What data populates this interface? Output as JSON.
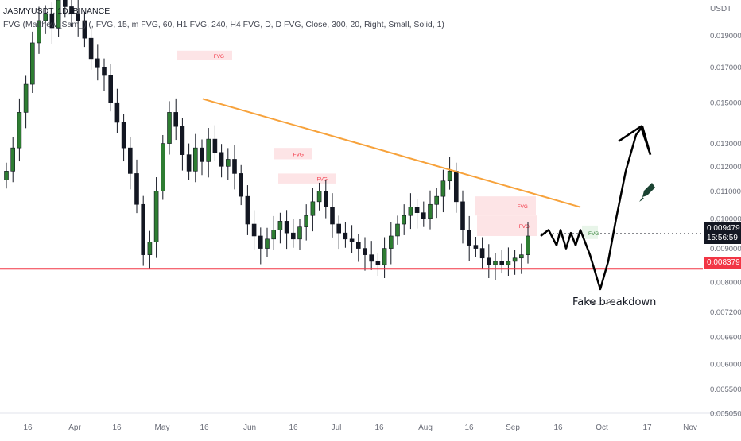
{
  "header": {
    "symbol_line": "JASMYUSDT, 1D, BINANCE",
    "indicator_line": "FVG (Matthew_Sam_) (, FVG, 15, m FVG, 60, H1 FVG, 240, H4 FVG, D, D FVG, Close, 300, 20, Right, Small, Solid, 1)"
  },
  "price_scale": {
    "unit": "USDT",
    "current_price": "0.009479",
    "countdown": "15:56:59",
    "support_price": "0.008379"
  },
  "annotation": {
    "text": "Fake breakdown"
  },
  "colors": {
    "up": "#26a69a",
    "down": "#131722",
    "bull_fill": "#2e7d32",
    "trendline": "#f7a23b",
    "support": "#f23645",
    "fvg_fill": "#fde4e6",
    "fvg_text": "#f23645",
    "rocket": "#1b4332"
  },
  "chart_data": {
    "type": "candlestick",
    "symbol": "JASMYUSDT",
    "timeframe": "1D",
    "exchange": "BINANCE",
    "yscale": "log",
    "ylim": [
      0.00505,
      0.0215
    ],
    "y_ticks": [
      "0.019000",
      "0.017000",
      "0.015000",
      "0.013000",
      "0.012000",
      "0.011000",
      "0.010000",
      "0.009000",
      "0.008000",
      "0.007200",
      "0.006600",
      "0.006000",
      "0.005500",
      "0.005050"
    ],
    "x_ticks": [
      "16",
      "Apr",
      "16",
      "May",
      "16",
      "Jun",
      "16",
      "Jul",
      "16",
      "Aug",
      "16",
      "Sep",
      "16",
      "Oct",
      "17",
      "Nov"
    ],
    "candles_close_path": [
      0.0118,
      0.0128,
      0.0145,
      0.016,
      0.0185,
      0.02,
      0.0205,
      0.0195,
      0.0215,
      0.021,
      0.0205,
      0.02,
      0.0188,
      0.0175,
      0.017,
      0.0165,
      0.015,
      0.014,
      0.0128,
      0.0117,
      0.0105,
      0.0088,
      0.0092,
      0.011,
      0.013,
      0.0145,
      0.0138,
      0.0125,
      0.0118,
      0.0128,
      0.0122,
      0.0132,
      0.0126,
      0.012,
      0.0123,
      0.0117,
      0.0108,
      0.0098,
      0.0094,
      0.009,
      0.0093,
      0.0096,
      0.0099,
      0.0095,
      0.0093,
      0.0097,
      0.0101,
      0.0106,
      0.011,
      0.0104,
      0.0098,
      0.0095,
      0.0093,
      0.0092,
      0.009,
      0.0088,
      0.0086,
      0.0085,
      0.009,
      0.0094,
      0.0098,
      0.0101,
      0.0104,
      0.0102,
      0.01,
      0.0105,
      0.0108,
      0.0114,
      0.0118,
      0.0106,
      0.0096,
      0.0091,
      0.009,
      0.0087,
      0.0085,
      0.0086,
      0.0085,
      0.0086,
      0.0087,
      0.0088,
      0.0094
    ],
    "fvg_zones": [
      {
        "label": "FVG"
      },
      {
        "label": "FVG"
      },
      {
        "label": "FVG"
      },
      {
        "label": "FVG"
      },
      {
        "label": "FVG"
      }
    ],
    "fvg_bull_label": "FVG",
    "trendline": {
      "start_price": 0.0152,
      "end_price": 0.0104
    },
    "support_level": 0.008379,
    "current_price": 0.009479,
    "projection": [
      0.0094,
      0.0096,
      0.0091,
      0.0096,
      0.009,
      0.0095,
      0.0091,
      0.0096,
      0.0088,
      0.0078,
      0.0086,
      0.01,
      0.0118,
      0.0134,
      0.0138,
      0.0125
    ]
  }
}
